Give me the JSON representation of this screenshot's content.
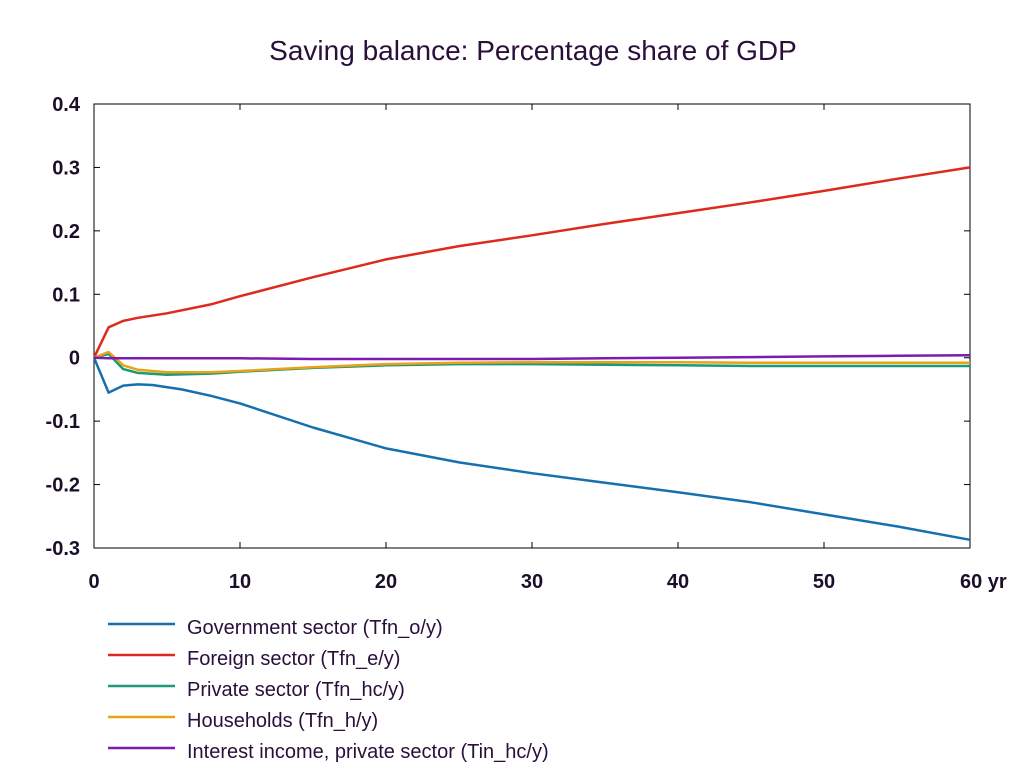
{
  "chart_data": {
    "type": "line",
    "title": "Saving balance: Percentage share of GDP",
    "xlabel": "",
    "ylabel": "",
    "x_unit_label": "yr",
    "xlim": [
      0,
      60
    ],
    "ylim": [
      -0.3,
      0.4
    ],
    "x_ticks": [
      0,
      10,
      20,
      30,
      40,
      50,
      60
    ],
    "y_ticks": [
      -0.3,
      -0.2,
      -0.1,
      0,
      0.1,
      0.2,
      0.3,
      0.4
    ],
    "x_tick_labels": [
      "0",
      "10",
      "20",
      "30",
      "40",
      "50",
      "60 yr"
    ],
    "y_tick_labels": [
      "-0.3",
      "-0.2",
      "-0.1",
      "0",
      "0.1",
      "0.2",
      "0.3",
      "0.4"
    ],
    "grid": false,
    "legend_position": "bottom",
    "series": [
      {
        "name": "Government sector (Tfn_o/y)",
        "color": "#1570b0",
        "x": [
          0,
          1,
          2,
          3,
          4,
          6,
          8,
          10,
          15,
          20,
          25,
          30,
          35,
          40,
          45,
          50,
          55,
          60
        ],
        "y": [
          0,
          -0.055,
          -0.044,
          -0.042,
          -0.043,
          -0.05,
          -0.06,
          -0.072,
          -0.11,
          -0.143,
          -0.165,
          -0.182,
          -0.197,
          -0.212,
          -0.228,
          -0.247,
          -0.266,
          -0.287
        ]
      },
      {
        "name": "Foreign sector (Tfn_e/y)",
        "color": "#dd2a1c",
        "x": [
          0,
          1,
          2,
          3,
          5,
          8,
          10,
          15,
          20,
          25,
          30,
          35,
          40,
          45,
          50,
          55,
          60
        ],
        "y": [
          0,
          0.048,
          0.058,
          0.063,
          0.07,
          0.084,
          0.097,
          0.127,
          0.155,
          0.176,
          0.193,
          0.211,
          0.228,
          0.245,
          0.263,
          0.282,
          0.3
        ]
      },
      {
        "name": "Private sector (Tfn_hc/y)",
        "color": "#1a9a78",
        "x": [
          0,
          1,
          2,
          3,
          5,
          8,
          10,
          15,
          20,
          25,
          30,
          35,
          40,
          45,
          50,
          55,
          60
        ],
        "y": [
          0,
          0.006,
          -0.018,
          -0.024,
          -0.027,
          -0.025,
          -0.022,
          -0.016,
          -0.012,
          -0.01,
          -0.01,
          -0.011,
          -0.012,
          -0.013,
          -0.013,
          -0.013,
          -0.013
        ]
      },
      {
        "name": "Households (Tfn_h/y)",
        "color": "#e8a317",
        "x": [
          0,
          1,
          2,
          3,
          5,
          8,
          10,
          15,
          20,
          25,
          30,
          35,
          40,
          45,
          50,
          55,
          60
        ],
        "y": [
          0,
          0.009,
          -0.012,
          -0.019,
          -0.023,
          -0.023,
          -0.021,
          -0.015,
          -0.01,
          -0.008,
          -0.007,
          -0.007,
          -0.007,
          -0.008,
          -0.008,
          -0.008,
          -0.008
        ]
      },
      {
        "name": "Interest income, private sector (Tin_hc/y)",
        "color": "#7d1ab0",
        "x": [
          0,
          1,
          2,
          5,
          10,
          15,
          20,
          25,
          30,
          35,
          40,
          45,
          50,
          55,
          60
        ],
        "y": [
          0,
          -0.001,
          -0.001,
          -0.001,
          -0.001,
          -0.002,
          -0.002,
          -0.002,
          -0.002,
          -0.001,
          0,
          0.001,
          0.002,
          0.003,
          0.004
        ]
      }
    ]
  }
}
